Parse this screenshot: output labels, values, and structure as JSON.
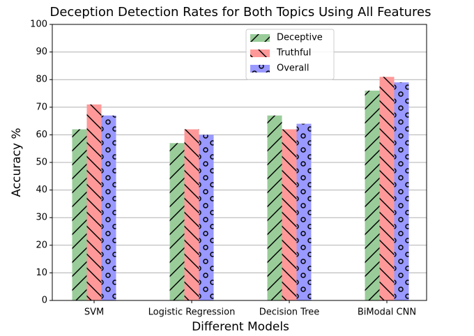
{
  "chart_data": {
    "type": "bar",
    "title": "Deception Detection Rates for Both Topics Using All Features",
    "x_label": "Different Models",
    "y_label": "Accuracy %",
    "categories": [
      "SVM",
      "Logistic Regression",
      "Decision Tree",
      "BiModal CNN"
    ],
    "series": [
      {
        "name": "Deceptive",
        "color": "#99cc99",
        "hatch": "/",
        "values": [
          62,
          57,
          67,
          76
        ]
      },
      {
        "name": "Truthful",
        "color": "#ff9999",
        "hatch": "\\",
        "values": [
          71,
          62,
          62,
          81
        ]
      },
      {
        "name": "Overall",
        "color": "#9999ff",
        "hatch": "o",
        "values": [
          67,
          60,
          64,
          79
        ]
      }
    ],
    "ylim": [
      0,
      100
    ],
    "yticks": [
      0,
      10,
      20,
      30,
      40,
      50,
      60,
      70,
      80,
      90,
      100
    ],
    "grid": true,
    "legend": "upper center"
  }
}
